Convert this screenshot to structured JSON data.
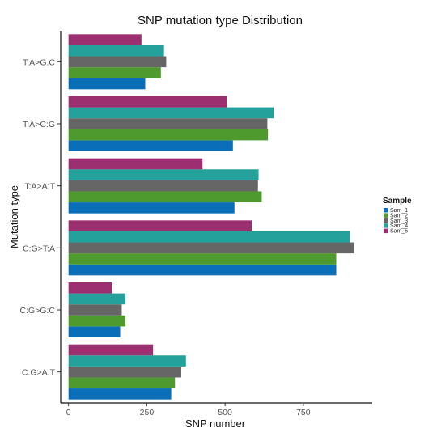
{
  "chart_data": {
    "type": "bar",
    "orientation": "horizontal",
    "title": "SNP mutation type Distribution",
    "xlabel": "SNP number",
    "ylabel": "Mutation type",
    "xlim": [
      -25,
      970
    ],
    "xticks": [
      0,
      250,
      500,
      750
    ],
    "grid": false,
    "legend_title": "Sample",
    "legend_position": "right",
    "categories": [
      "T:A>G:C",
      "T:A>C:G",
      "T:A>A:T",
      "C:G>T:A",
      "C:G>G:C",
      "C:G>A:T"
    ],
    "series": [
      {
        "name": "Sam_1",
        "color": "#0a6fb8",
        "values": [
          245,
          525,
          530,
          855,
          165,
          328
        ]
      },
      {
        "name": "Sam_2",
        "color": "#4e9a2f",
        "values": [
          295,
          637,
          617,
          855,
          182,
          340
        ]
      },
      {
        "name": "Sam_3",
        "color": "#666666",
        "values": [
          312,
          635,
          605,
          912,
          170,
          360
        ]
      },
      {
        "name": "Sam_4",
        "color": "#23a19a",
        "values": [
          305,
          655,
          607,
          898,
          182,
          375
        ]
      },
      {
        "name": "Sam_5",
        "color": "#9c2f6f",
        "values": [
          233,
          505,
          428,
          585,
          138,
          270
        ]
      }
    ]
  }
}
